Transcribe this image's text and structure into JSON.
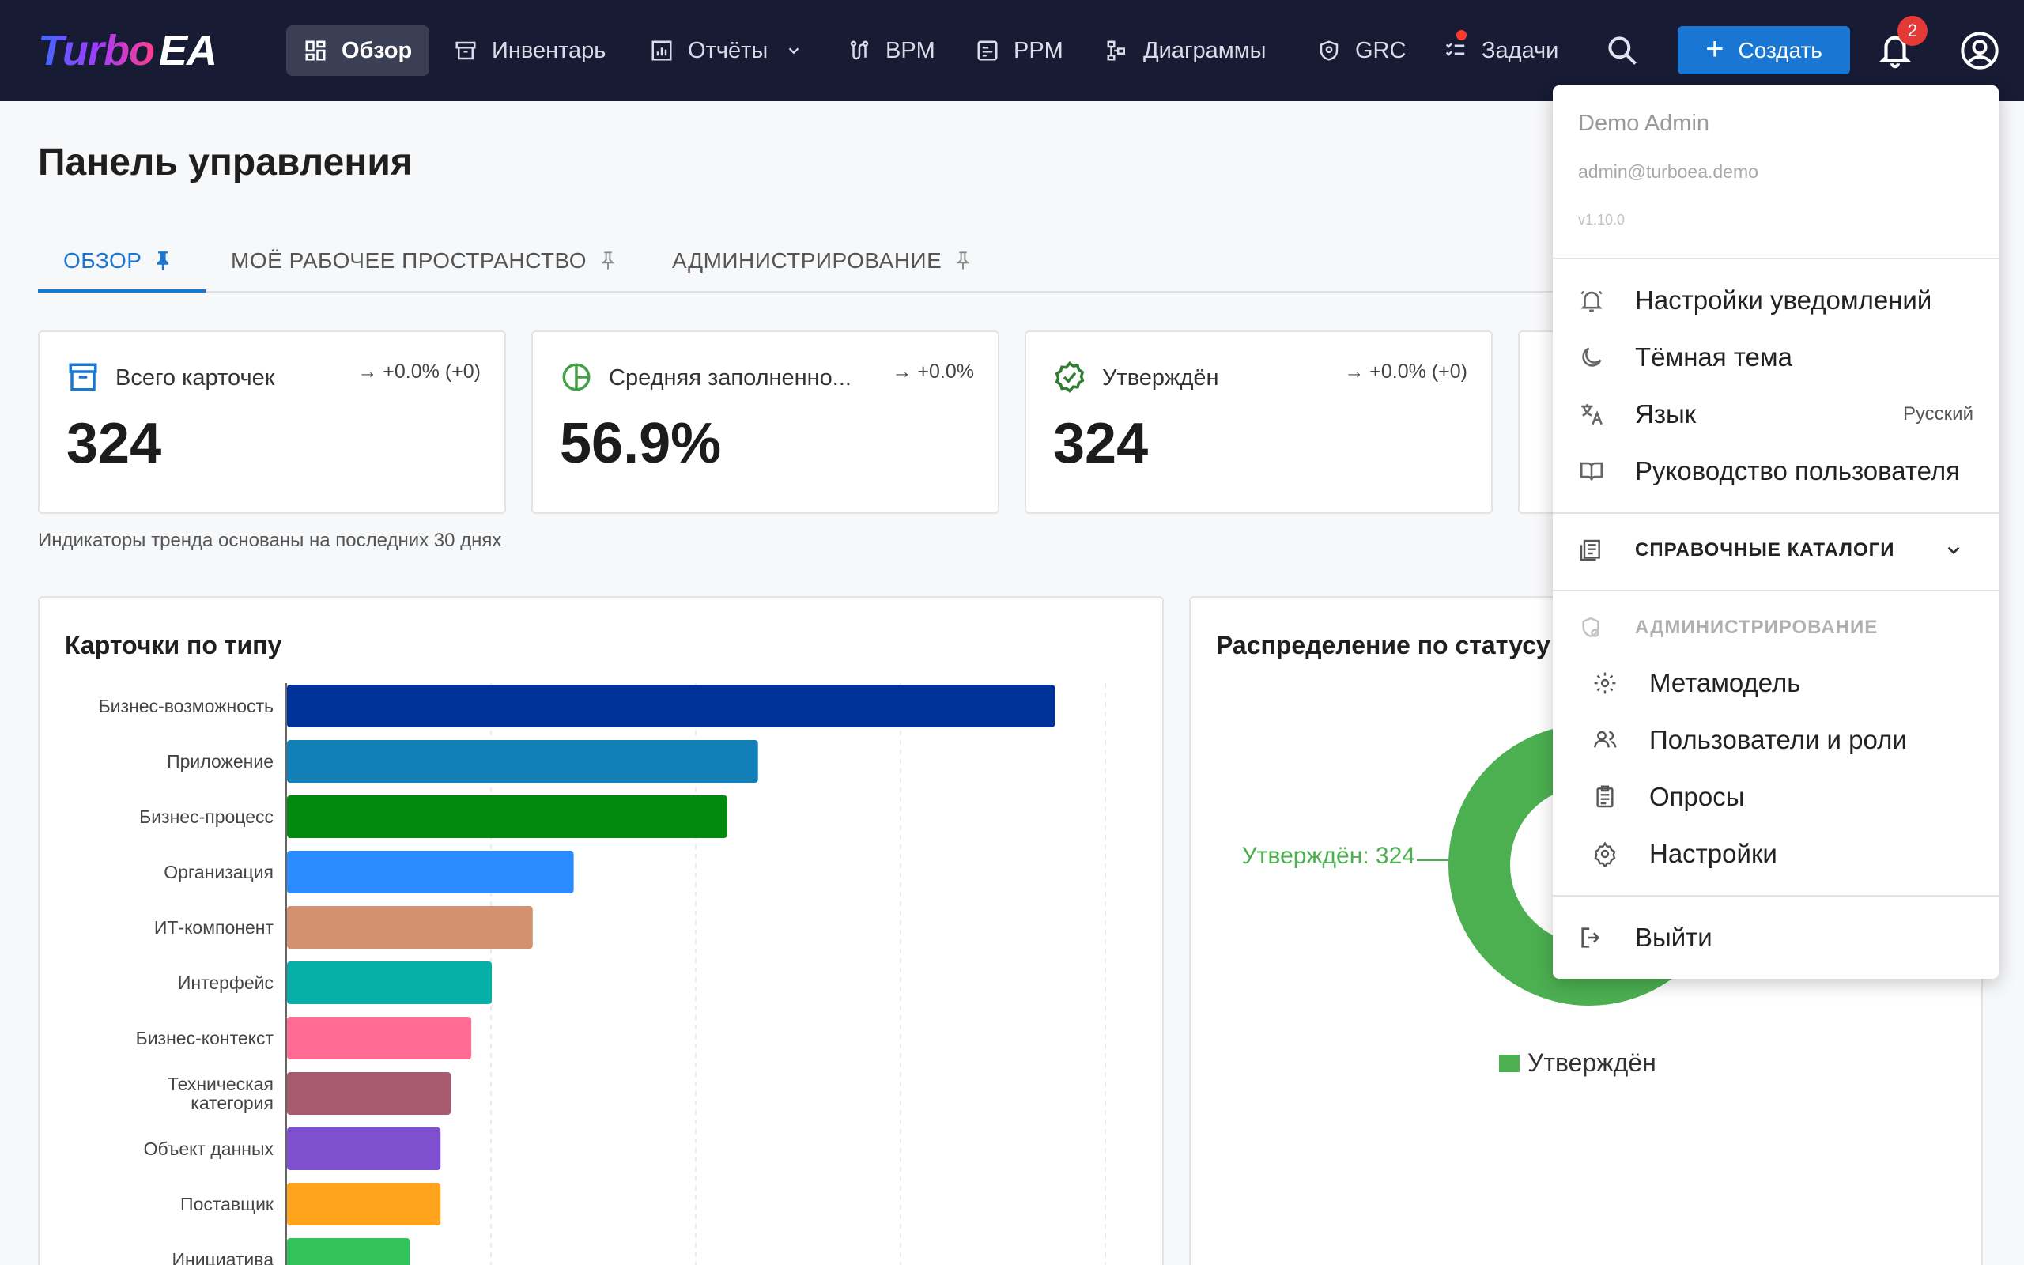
{
  "app": {
    "logo_part1": "Turbo",
    "logo_part2": "EA"
  },
  "nav": [
    {
      "label": "Обзор",
      "icon": "dashboard-icon",
      "active": true
    },
    {
      "label": "Инвентарь",
      "icon": "inventory-icon"
    },
    {
      "label": "Отчёты",
      "icon": "reports-icon",
      "dropdown": true
    },
    {
      "label": "BPM",
      "icon": "bpm-icon"
    },
    {
      "label": "PPM",
      "icon": "ppm-icon"
    },
    {
      "label": "Диаграммы",
      "icon": "diagrams-icon"
    },
    {
      "label": "GRC",
      "icon": "grc-shield-icon"
    },
    {
      "label": "Задачи",
      "icon": "tasks-icon",
      "has_dot": true
    }
  ],
  "header": {
    "create_label": "Создать",
    "notifications_count": "2"
  },
  "page": {
    "title": "Панель управления",
    "tabs": [
      {
        "label": "ОБЗОР",
        "pinned": true
      },
      {
        "label": "МОЁ РАБОЧЕЕ ПРОСТРАНСТВО",
        "pinned": false
      },
      {
        "label": "АДМИНИСТРИРОВАНИЕ",
        "pinned": false
      }
    ]
  },
  "kpis": [
    {
      "label": "Всего карточек",
      "value": "324",
      "trend": "→ +0.0% (+0)",
      "icon": "archive-icon",
      "color": "#1976d2"
    },
    {
      "label": "Средняя заполненно...",
      "value": "56.9%",
      "trend": "→ +0.0%",
      "icon": "pie-icon",
      "color": "#43a047"
    },
    {
      "label": "Утверждён",
      "value": "324",
      "trend": "→ +0.0% (+0)",
      "icon": "verified-icon",
      "color": "#2e7d32"
    }
  ],
  "trend_note": "Индикаторы тренда основаны на последних 30 днях",
  "panels": {
    "by_type_title": "Карточки по типу",
    "by_status_title": "Распределение по статусу"
  },
  "chart_data": [
    {
      "type": "bar",
      "orientation": "horizontal",
      "title": "Карточки по типу",
      "categories": [
        "Бизнес-возможность",
        "Приложение",
        "Бизнес-процесс",
        "Организация",
        "ИТ-компонент",
        "Интерфейс",
        "Бизнес-контекст",
        "Техническая категория",
        "Объект данных",
        "Поставщик",
        "Инициатива"
      ],
      "values": [
        75,
        46,
        43,
        28,
        24,
        20,
        18,
        16,
        15,
        15,
        12
      ],
      "colors": [
        "#003399",
        "#117fb8",
        "#028a0f",
        "#2a8cff",
        "#d4916f",
        "#05afa8",
        "#ff6b93",
        "#a85a6e",
        "#7e4fcf",
        "#ffa41c",
        "#33c35c"
      ],
      "xlim": [
        0,
        80
      ],
      "grid": true
    },
    {
      "type": "pie",
      "title": "Распределение по статусу",
      "categories": [
        "Утверждён"
      ],
      "values": [
        324
      ],
      "colors": [
        "#4caf50"
      ],
      "donut": true,
      "data_labels": [
        "Утверждён: 324"
      ],
      "legend": "bottom"
    }
  ],
  "user_menu": {
    "name": "Demo Admin",
    "email": "admin@turboea.demo",
    "version": "v1.10.0",
    "items": [
      {
        "label": "Настройки уведомлений",
        "icon": "notification-settings-icon"
      },
      {
        "label": "Тёмная тема",
        "icon": "moon-icon"
      },
      {
        "label": "Язык",
        "icon": "translate-icon",
        "value": "Русский"
      },
      {
        "label": "Руководство пользователя",
        "icon": "book-icon"
      }
    ],
    "catalogs_label": "СПРАВОЧНЫЕ КАТАЛОГИ",
    "admin_label": "АДМИНИСТРИРОВАНИЕ",
    "admin_items": [
      {
        "label": "Метамодель",
        "icon": "metamodel-gear-icon"
      },
      {
        "label": "Пользователи и роли",
        "icon": "users-icon"
      },
      {
        "label": "Опросы",
        "icon": "survey-icon"
      },
      {
        "label": "Настройки",
        "icon": "settings-gear-icon"
      }
    ],
    "logout_label": "Выйти"
  }
}
